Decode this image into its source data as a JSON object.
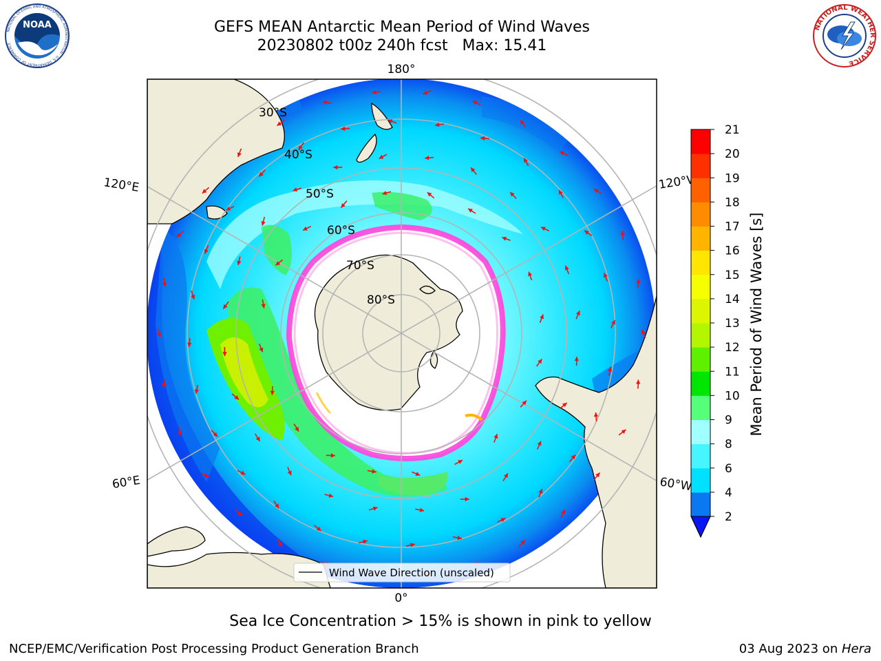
{
  "title": {
    "line1": "GEFS MEAN Antarctic Mean Period of Wind Waves",
    "line2": "20230802 t00z 240h fcst   Max: 15.41"
  },
  "logos": {
    "noaa": {
      "text": "NOAA",
      "ring_text": "NATIONAL OCEANIC AND ATMOSPHERIC ADMINISTRATION · U.S. DEPARTMENT OF COMMERCE"
    },
    "nws": {
      "ring_text": "NATIONAL WEATHER SERVICE"
    }
  },
  "map": {
    "projection": "south-polar-stereographic",
    "longitude_labels": {
      "top": "180°",
      "bottom": "0°",
      "upper_left": "120°E",
      "lower_left": "60°E",
      "upper_right": "120°W",
      "lower_right": "60°W"
    },
    "latitude_labels": [
      "30°S",
      "40°S",
      "50°S",
      "60°S",
      "70°S",
      "80°S"
    ],
    "legend": "Wind Wave Direction (unscaled)",
    "colors": {
      "land": "#efedd9",
      "ice_free_of_data": "#ffffff",
      "sea_ice_edge": "#ff44dd",
      "arrow": "#ee1111",
      "grid": "#b4b4b4"
    }
  },
  "colorbar": {
    "label": "Mean Period of Wind Waves [s]",
    "ticks": [
      "2",
      "4",
      "6",
      "8",
      "9",
      "10",
      "11",
      "12",
      "13",
      "14",
      "15",
      "16",
      "17",
      "18",
      "19",
      "20",
      "21"
    ],
    "colors": [
      "#0a78f0",
      "#00e0ff",
      "#46f5ff",
      "#a0ffff",
      "#55ff7a",
      "#00e600",
      "#5ff000",
      "#b4f500",
      "#dcf500",
      "#f5ff00",
      "#ffe600",
      "#ffb400",
      "#ff8c00",
      "#ff6000",
      "#ff3000",
      "#ff0000"
    ],
    "extend_color": "#0a14f5"
  },
  "footer": {
    "center": "Sea Ice Concentration > 15% is shown in pink to yellow",
    "left": "NCEP/EMC/Verification Post Processing Product Generation Branch",
    "right_date": "03 Aug 2023 on ",
    "right_host": "Hera"
  }
}
